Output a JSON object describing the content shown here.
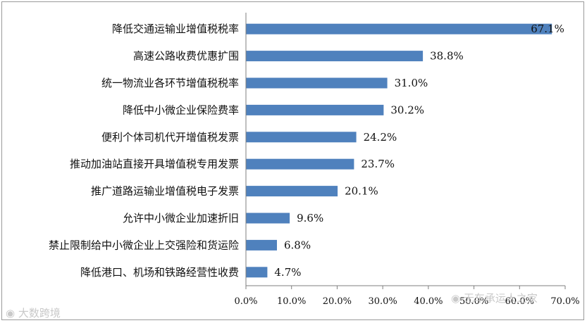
{
  "chart_data": {
    "type": "bar",
    "orientation": "horizontal",
    "categories": [
      "降低交通运输业增值税税率",
      "高速公路收费优惠扩围",
      "统一物流业各环节增值税税率",
      "降低中小微企业保险费率",
      "便利个体司机代开增值税发票",
      "推动加油站直接开具增值税专用发票",
      "推广道路运输业增值税电子发票",
      "允许中小微企业加速折旧",
      "禁止限制给中小微企业上交强险和货运险",
      "降低港口、机场和铁路经营性收费"
    ],
    "values": [
      67.1,
      38.8,
      31.0,
      30.2,
      24.2,
      23.7,
      20.1,
      9.6,
      6.8,
      4.7
    ],
    "value_labels": [
      "67.1%",
      "38.8%",
      "31.0%",
      "30.2%",
      "24.2%",
      "23.7%",
      "20.1%",
      "9.6%",
      "6.8%",
      "4.7%"
    ],
    "xlim": [
      0,
      70
    ],
    "x_ticks": [
      "0.0%",
      "10.0%",
      "20.0%",
      "30.0%",
      "40.0%",
      "50.0%",
      "60.0%",
      "70.0%"
    ],
    "bar_color": "#4f81bd",
    "grid": false,
    "legend": "none"
  },
  "watermarks": {
    "left": "大数跨境",
    "right": "无车承运人之家"
  }
}
